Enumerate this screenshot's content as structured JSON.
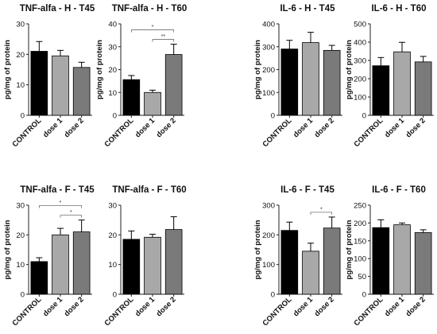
{
  "chart_data": [
    {
      "type": "bar",
      "title": "TNF-alfa - H - T45",
      "ylabel": "pg/mg of protein",
      "categories": [
        "CONTROL",
        "dose 1",
        "dose 2"
      ],
      "values": [
        21,
        19.5,
        15.7
      ],
      "errors": [
        3.2,
        1.8,
        1.7
      ],
      "ylim": [
        0,
        30
      ],
      "yticks": [
        0,
        10,
        20,
        30
      ],
      "significance": []
    },
    {
      "type": "bar",
      "title": "TNF-alfa - H - T60",
      "ylabel": "pg/mg of protein",
      "categories": [
        "CONTROL",
        "dose 1",
        "dose 2"
      ],
      "values": [
        15.6,
        10,
        26.6
      ],
      "errors": [
        1.8,
        1,
        4.5
      ],
      "ylim": [
        0,
        40
      ],
      "yticks": [
        0,
        10,
        20,
        30,
        40
      ],
      "significance": [
        {
          "from": 0,
          "to": 2,
          "label": "*"
        },
        {
          "from": 1,
          "to": 2,
          "label": "**"
        }
      ]
    },
    {
      "type": "bar",
      "title": "IL-6 - H - T45",
      "ylabel": "pg/mg of protein",
      "categories": [
        "CONTROL",
        "dose 1",
        "dose 2"
      ],
      "values": [
        290,
        318,
        284
      ],
      "errors": [
        38,
        45,
        22
      ],
      "ylim": [
        0,
        400
      ],
      "yticks": [
        0,
        100,
        200,
        300,
        400
      ],
      "significance": []
    },
    {
      "type": "bar",
      "title": "IL-6 - H - T60",
      "ylabel": "pg/mg of protein",
      "categories": [
        "CONTROL",
        "dose 1",
        "dose 2"
      ],
      "values": [
        271,
        347,
        292
      ],
      "errors": [
        45,
        52,
        30
      ],
      "ylim": [
        0,
        500
      ],
      "yticks": [
        0,
        100,
        200,
        300,
        400,
        500
      ],
      "significance": []
    },
    {
      "type": "bar",
      "title": "TNF-alfa - F - T45",
      "ylabel": "pg/mg of protein",
      "categories": [
        "CONTROL",
        "dose 1",
        "dose 2"
      ],
      "values": [
        11,
        20,
        21
      ],
      "errors": [
        1.3,
        2.2,
        4
      ],
      "ylim": [
        0,
        30
      ],
      "yticks": [
        0,
        10,
        20,
        30
      ],
      "significance": [
        {
          "from": 0,
          "to": 2,
          "label": "*"
        },
        {
          "from": 1,
          "to": 2,
          "label": "*"
        }
      ]
    },
    {
      "type": "bar",
      "title": "TNF-alfa - F - T60",
      "ylabel": "",
      "categories": [
        "CONTROL",
        "dose 1",
        "dose 2"
      ],
      "values": [
        18.5,
        19.2,
        21.8
      ],
      "errors": [
        2.8,
        1,
        4.3
      ],
      "ylim": [
        0,
        30
      ],
      "yticks": [
        0,
        10,
        20,
        30
      ],
      "significance": []
    },
    {
      "type": "bar",
      "title": "IL-6 - F - T45",
      "ylabel": "pg/mg of protein",
      "categories": [
        "CONTROL",
        "dose 1",
        "dose 2"
      ],
      "values": [
        215,
        145,
        223
      ],
      "errors": [
        28,
        27,
        37
      ],
      "ylim": [
        0,
        300
      ],
      "yticks": [
        0,
        100,
        200,
        300
      ],
      "significance": [
        {
          "from": 1,
          "to": 2,
          "label": "*"
        }
      ]
    },
    {
      "type": "bar",
      "title": "IL-6 - F - T60",
      "ylabel": "pg/mg of protein",
      "categories": [
        "CONTROL",
        "dose 1",
        "dose 2"
      ],
      "values": [
        187,
        195,
        173
      ],
      "errors": [
        22,
        5,
        8
      ],
      "ylim": [
        0,
        250
      ],
      "yticks": [
        0,
        50,
        100,
        150,
        200,
        250
      ],
      "significance": []
    }
  ],
  "colors": {
    "CONTROL": "#000000",
    "dose 1": "#a8a8a8",
    "dose 2": "#7a7a7a",
    "axis": "#222222"
  }
}
